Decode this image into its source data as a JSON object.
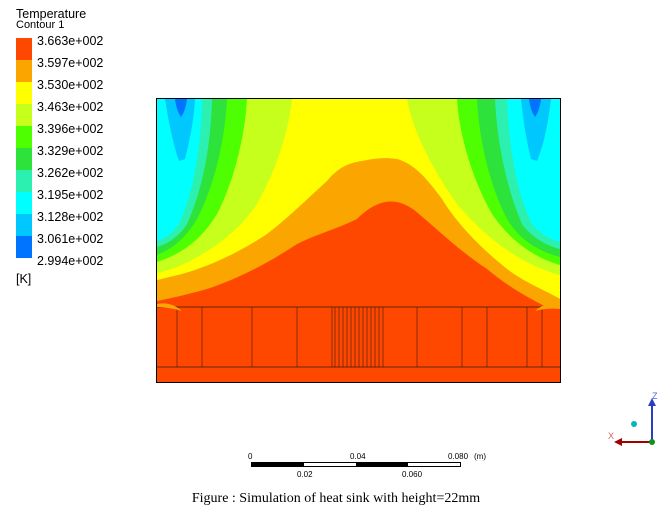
{
  "legend": {
    "title": "Temperature",
    "subtitle": "Contour 1",
    "unit": "[K]",
    "labels": [
      "3.663e+002",
      "3.597e+002",
      "3.530e+002",
      "3.463e+002",
      "3.396e+002",
      "3.329e+002",
      "3.262e+002",
      "3.195e+002",
      "3.128e+002",
      "3.061e+002",
      "2.994e+002"
    ],
    "colors": [
      "#fe4800",
      "#fba500",
      "#ffff00",
      "#c7ff1c",
      "#4dff00",
      "#2ce23b",
      "#2cf0b0",
      "#00ffff",
      "#00c8ff",
      "#0074ff",
      "#0040ff"
    ]
  },
  "scale_bar": {
    "top_labels": [
      "0",
      "0.04",
      "0.080",
      "(m)"
    ],
    "bottom_labels": [
      "0.02",
      "0.060"
    ]
  },
  "axes_triad": {
    "z_label": "Z",
    "x_label": "X",
    "z_color": "#4a6ad8",
    "x_color": "#b82020"
  },
  "caption": "Figure : Simulation of heat sink with height=22mm"
}
